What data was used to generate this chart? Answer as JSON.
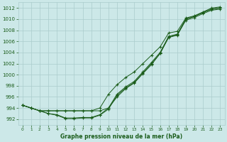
{
  "xlabel": "Graphe pression niveau de la mer (hPa)",
  "background_color": "#cce8e8",
  "line_color": "#1a5c1a",
  "grid_color": "#aacccc",
  "ylim": [
    991,
    1013
  ],
  "xlim": [
    -0.5,
    23.5
  ],
  "yticks": [
    992,
    994,
    996,
    998,
    1000,
    1002,
    1004,
    1006,
    1008,
    1010,
    1012
  ],
  "xticks": [
    0,
    1,
    2,
    3,
    4,
    5,
    6,
    7,
    8,
    9,
    10,
    11,
    12,
    13,
    14,
    15,
    16,
    17,
    18,
    19,
    20,
    21,
    22,
    23
  ],
  "s_flat": [
    994.5,
    994.0,
    993.5,
    993.5,
    993.5,
    993.5,
    993.5,
    993.5,
    993.5,
    993.5,
    994.0,
    996.0,
    997.5,
    998.5,
    1000.2,
    1001.8,
    1003.8,
    1006.8,
    1007.2,
    1010.0,
    1010.5,
    1011.2,
    1011.8,
    1012.0
  ],
  "s_low1": [
    994.5,
    994.0,
    993.5,
    993.0,
    992.8,
    992.2,
    992.2,
    992.3,
    992.3,
    992.8,
    994.0,
    996.5,
    997.8,
    998.8,
    1000.5,
    1002.2,
    1004.0,
    1006.9,
    1007.3,
    1010.0,
    1010.5,
    1011.2,
    1011.8,
    1012.0
  ],
  "s_low2": [
    994.5,
    994.0,
    993.5,
    993.0,
    992.7,
    992.1,
    992.1,
    992.2,
    992.2,
    992.7,
    993.8,
    996.3,
    997.6,
    998.6,
    1000.3,
    1002.0,
    1003.8,
    1006.7,
    1007.1,
    1009.8,
    1010.3,
    1011.0,
    1011.6,
    1011.8
  ],
  "s_high": [
    994.5,
    994.0,
    993.5,
    993.5,
    993.5,
    993.5,
    993.5,
    993.5,
    993.5,
    994.0,
    996.5,
    998.2,
    999.5,
    1000.5,
    1002.0,
    1003.5,
    1005.0,
    1007.5,
    1007.8,
    1010.2,
    1010.6,
    1011.3,
    1012.0,
    1012.2
  ]
}
